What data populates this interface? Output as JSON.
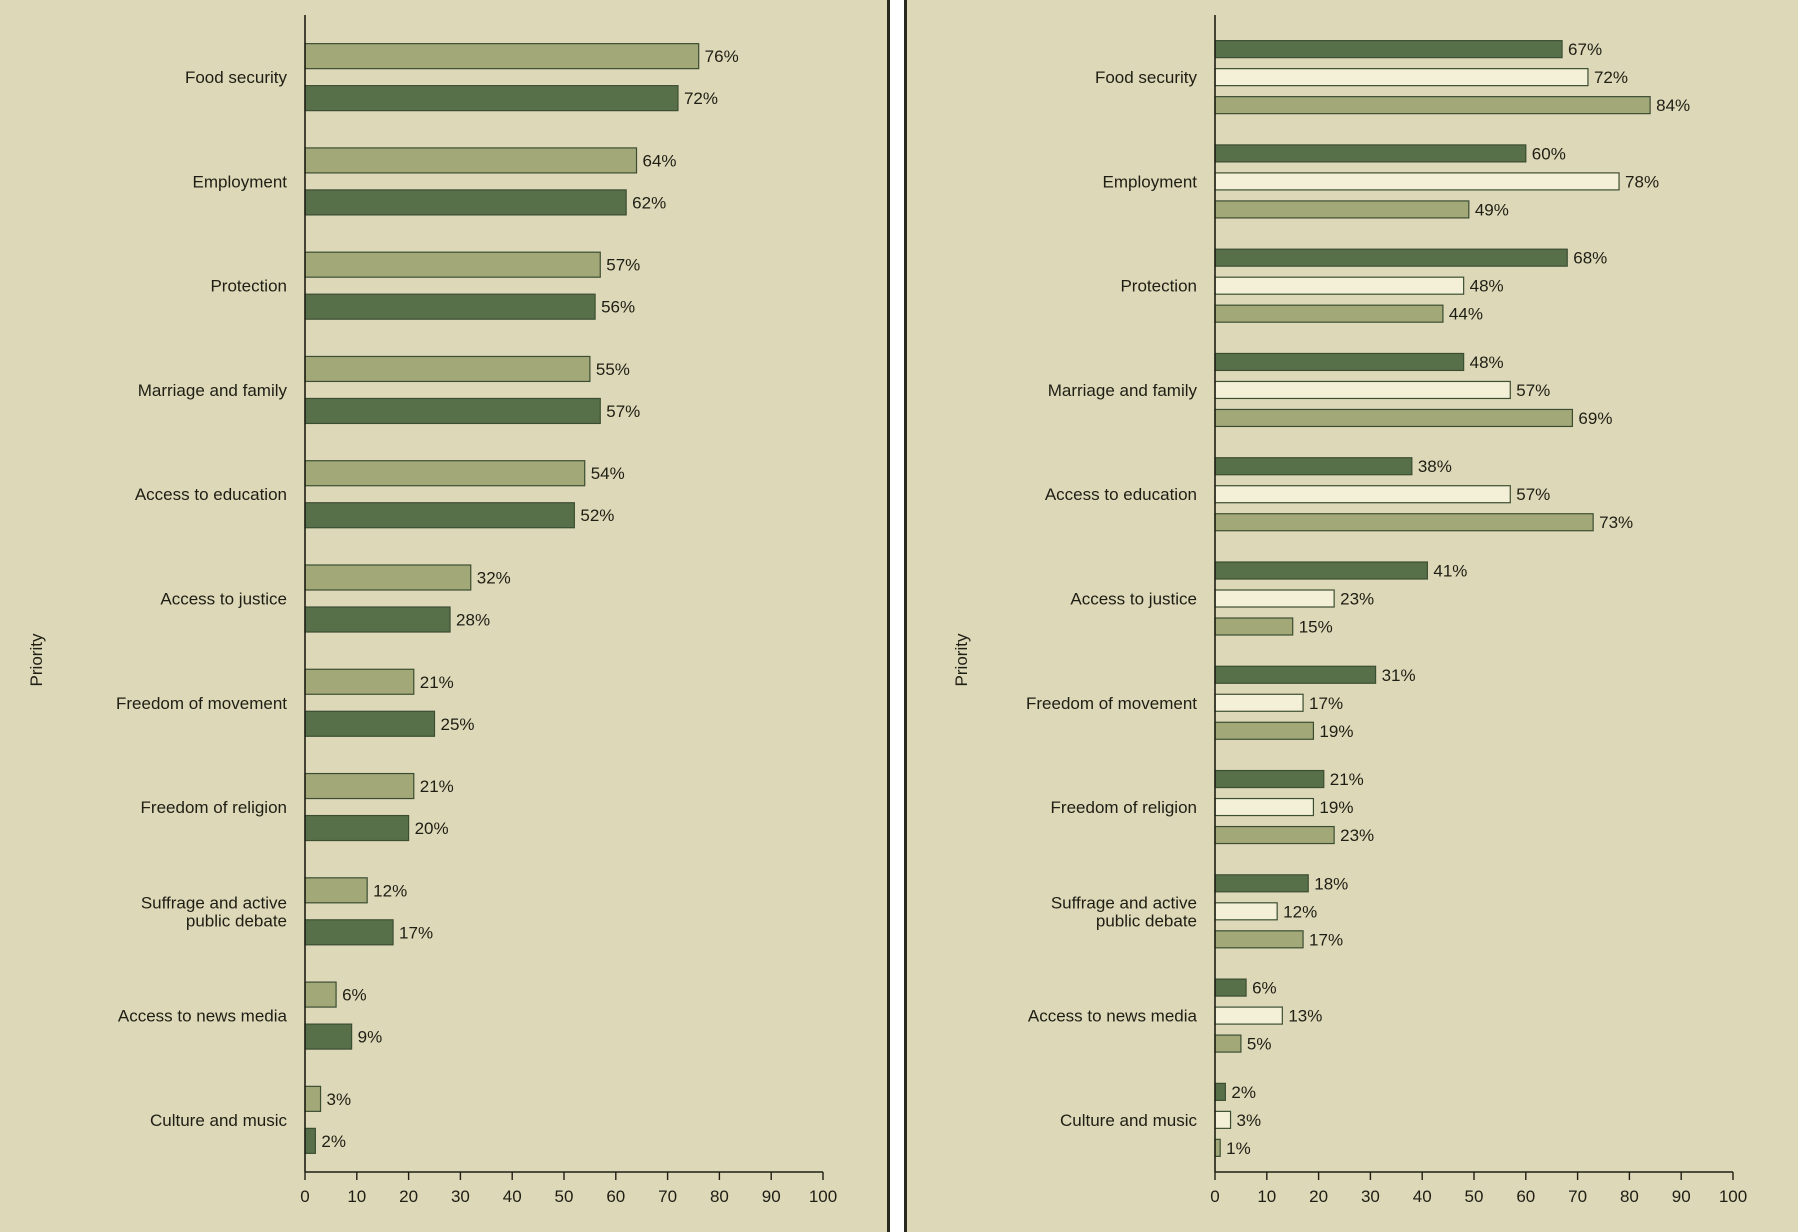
{
  "colors": {
    "background": "#ddd8b8",
    "dark_green": "#58704a",
    "light_green": "#a3a878",
    "cream": "#f4f0d8",
    "bar_border": "#3c4e32",
    "axis": "#1e1e14",
    "divider": "#2a2a20"
  },
  "chart_data": [
    {
      "type": "bar",
      "orientation": "horizontal",
      "ylabel": "Priority",
      "xlim": [
        0,
        100
      ],
      "xticks": [
        0,
        10,
        20,
        30,
        40,
        50,
        60,
        70,
        80,
        90,
        100
      ],
      "categories": [
        [
          "Food security"
        ],
        [
          "Employment"
        ],
        [
          "Protection"
        ],
        [
          "Marriage and family"
        ],
        [
          "Access to education"
        ],
        [
          "Access to justice"
        ],
        [
          "Freedom of movement"
        ],
        [
          "Freedom of religion"
        ],
        [
          "Suffrage and active",
          "public debate"
        ],
        [
          "Access to news media"
        ],
        [
          "Culture and music"
        ]
      ],
      "series": [
        {
          "style": "light",
          "values": [
            76,
            64,
            57,
            55,
            54,
            32,
            21,
            21,
            12,
            6,
            3
          ],
          "labels": [
            "76%",
            "64%",
            "57%",
            "55%",
            "54%",
            "32%",
            "21%",
            "21%",
            "12%",
            "6%",
            "3%"
          ]
        },
        {
          "style": "dark",
          "values": [
            72,
            62,
            56,
            57,
            52,
            28,
            25,
            20,
            17,
            9,
            2
          ],
          "labels": [
            "72%",
            "62%",
            "56%",
            "57%",
            "52%",
            "28%",
            "25%",
            "20%",
            "17%",
            "9%",
            "2%"
          ]
        }
      ]
    },
    {
      "type": "bar",
      "orientation": "horizontal",
      "ylabel": "Priority",
      "xlim": [
        0,
        100
      ],
      "xticks": [
        0,
        10,
        20,
        30,
        40,
        50,
        60,
        70,
        80,
        90,
        100
      ],
      "categories": [
        [
          "Food security"
        ],
        [
          "Employment"
        ],
        [
          "Protection"
        ],
        [
          "Marriage and family"
        ],
        [
          "Access to education"
        ],
        [
          "Access to justice"
        ],
        [
          "Freedom of movement"
        ],
        [
          "Freedom of religion"
        ],
        [
          "Suffrage and active",
          "public debate"
        ],
        [
          "Access to news media"
        ],
        [
          "Culture and music"
        ]
      ],
      "series": [
        {
          "style": "dark",
          "values": [
            67,
            60,
            68,
            48,
            38,
            41,
            31,
            21,
            18,
            6,
            2
          ],
          "labels": [
            "67%",
            "60%",
            "68%",
            "48%",
            "38%",
            "41%",
            "31%",
            "21%",
            "18%",
            "6%",
            "2%"
          ]
        },
        {
          "style": "cream",
          "values": [
            72,
            78,
            48,
            57,
            57,
            23,
            17,
            19,
            12,
            13,
            3
          ],
          "labels": [
            "72%",
            "78%",
            "48%",
            "57%",
            "57%",
            "23%",
            "17%",
            "19%",
            "12%",
            "13%",
            "3%"
          ]
        },
        {
          "style": "light",
          "values": [
            84,
            49,
            44,
            69,
            73,
            15,
            19,
            23,
            17,
            5,
            1
          ],
          "labels": [
            "84%",
            "49%",
            "44%",
            "69%",
            "73%",
            "15%",
            "19%",
            "23%",
            "17%",
            "5%",
            "1%"
          ]
        }
      ]
    }
  ]
}
